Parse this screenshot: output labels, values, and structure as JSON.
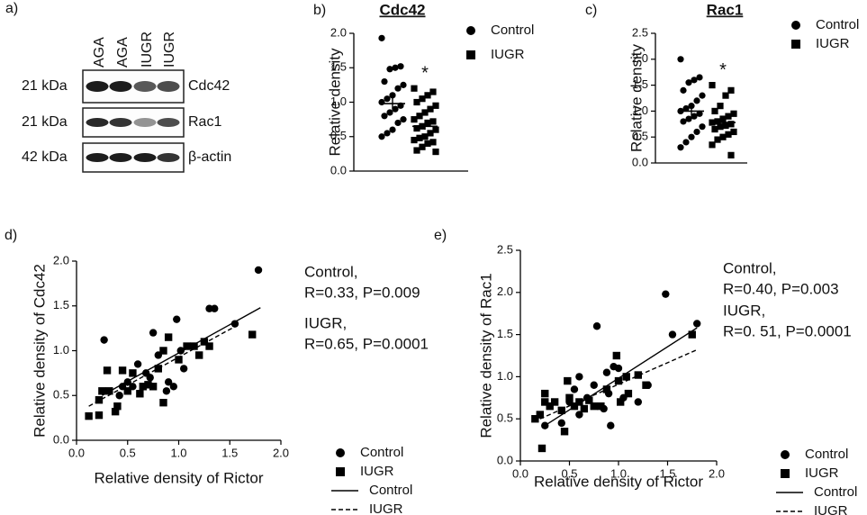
{
  "blot": {
    "panel_label": "a)",
    "lanes": [
      "AGA",
      "AGA",
      "IUGR",
      "IUGR"
    ],
    "rows": [
      {
        "weight": "21 kDa",
        "protein": "Cdc42"
      },
      {
        "weight": "21 kDa",
        "protein": "Rac1"
      },
      {
        "weight": "42 kDa",
        "protein": "β-actin"
      }
    ]
  },
  "chart_data": [
    {
      "type": "strip",
      "panel_label": "b)",
      "title": "Cdc42",
      "ylabel": "Relative density",
      "annotation": "*",
      "ylim": [
        0,
        2
      ],
      "yticks": [
        {
          "value": 0,
          "label": "0.0"
        },
        0.5,
        {
          "value": 1,
          "label": "1.0"
        },
        1.5,
        {
          "value": 2,
          "label": "2.0"
        }
      ],
      "series": [
        {
          "name": "Control",
          "marker": "circle",
          "color": "#000000",
          "mean": 0.98,
          "error": 0.08,
          "values": [
            1.93,
            1.52,
            1.5,
            1.48,
            1.3,
            1.25,
            1.2,
            1.1,
            1.05,
            1.0,
            0.95,
            0.9,
            0.85,
            0.8,
            0.75,
            0.7,
            0.6,
            0.55,
            0.5
          ]
        },
        {
          "name": "IUGR",
          "marker": "square",
          "color": "#000000",
          "mean": 0.65,
          "error": 0.05,
          "values": [
            1.2,
            1.15,
            1.1,
            1.05,
            1.0,
            0.95,
            0.9,
            0.85,
            0.8,
            0.75,
            0.72,
            0.7,
            0.65,
            0.62,
            0.6,
            0.55,
            0.5,
            0.48,
            0.45,
            0.42,
            0.4,
            0.35,
            0.3,
            0.28
          ]
        }
      ]
    },
    {
      "type": "strip",
      "panel_label": "c)",
      "title": "Rac1",
      "ylabel": "Relative density",
      "annotation": "*",
      "ylim": [
        0,
        2.5
      ],
      "yticks": [
        {
          "value": 0,
          "label": "0.0"
        },
        0.5,
        {
          "value": 1,
          "label": "1.0"
        },
        1.5,
        {
          "value": 2,
          "label": "2.0"
        },
        2.5
      ],
      "series": [
        {
          "name": "Control",
          "marker": "circle",
          "color": "#000000",
          "mean": 1.0,
          "error": 0.09,
          "values": [
            2.0,
            1.65,
            1.6,
            1.55,
            1.4,
            1.3,
            1.2,
            1.1,
            1.05,
            1.0,
            0.95,
            0.9,
            0.85,
            0.8,
            0.7,
            0.6,
            0.5,
            0.4,
            0.3
          ]
        },
        {
          "name": "IUGR",
          "marker": "square",
          "color": "#000000",
          "mean": 0.78,
          "error": 0.06,
          "values": [
            1.5,
            1.4,
            1.3,
            1.1,
            1.0,
            0.95,
            0.9,
            0.85,
            0.8,
            0.78,
            0.75,
            0.72,
            0.7,
            0.65,
            0.6,
            0.55,
            0.5,
            0.45,
            0.35,
            0.15
          ]
        }
      ]
    },
    {
      "type": "scatter",
      "panel_label": "d)",
      "xlabel": "Relative density of Rictor",
      "ylabel": "Relative density of Cdc42",
      "xlim": [
        0,
        2
      ],
      "xticks": [
        {
          "value": 0,
          "label": "0.0"
        },
        0.5,
        {
          "value": 1,
          "label": "1.0"
        },
        1.5,
        {
          "value": 2,
          "label": "2.0"
        }
      ],
      "ylim": [
        0,
        2
      ],
      "yticks": [
        {
          "value": 0,
          "label": "0.0"
        },
        0.5,
        {
          "value": 1,
          "label": "1.0"
        },
        1.5,
        {
          "value": 2,
          "label": "2.0"
        }
      ],
      "annotations": [
        "Control,",
        "R=0.33, P=0.009",
        "IUGR,",
        "R=0.65, P=0.0001"
      ],
      "series": [
        {
          "name": "Control",
          "marker": "circle",
          "color": "#000000",
          "x": [
            1.78,
            0.27,
            0.98,
            1.3,
            1.35,
            1.55,
            0.75,
            1.02,
            0.8,
            0.6,
            0.68,
            0.5,
            0.45,
            0.42,
            0.55,
            0.9,
            0.95,
            0.88,
            1.05,
            0.72
          ],
          "y": [
            1.9,
            1.12,
            1.35,
            1.47,
            1.47,
            1.3,
            1.2,
            1.0,
            0.95,
            0.85,
            0.75,
            0.65,
            0.6,
            0.5,
            0.6,
            0.65,
            0.6,
            0.55,
            0.8,
            0.7
          ]
        },
        {
          "name": "IUGR",
          "marker": "square",
          "color": "#000000",
          "x": [
            0.12,
            0.22,
            0.22,
            0.25,
            0.3,
            0.32,
            0.38,
            0.4,
            0.45,
            0.5,
            0.55,
            0.62,
            0.65,
            0.75,
            0.85,
            0.8,
            0.85,
            0.9,
            1.0,
            1.08,
            1.15,
            1.2,
            1.25,
            1.3,
            1.72,
            0.7
          ],
          "y": [
            0.27,
            0.28,
            0.45,
            0.55,
            0.78,
            0.55,
            0.32,
            0.38,
            0.78,
            0.55,
            0.75,
            0.52,
            0.6,
            0.6,
            0.42,
            0.8,
            1.0,
            1.15,
            0.9,
            1.05,
            1.05,
            0.95,
            1.1,
            1.05,
            1.18,
            0.62
          ]
        }
      ],
      "fits": [
        {
          "name": "Control",
          "style": "solid",
          "x": [
            0.25,
            1.8
          ],
          "y": [
            0.5,
            1.48
          ]
        },
        {
          "name": "IUGR",
          "style": "dashed",
          "x": [
            0.12,
            1.6
          ],
          "y": [
            0.38,
            1.3
          ]
        }
      ]
    },
    {
      "type": "scatter",
      "panel_label": "e)",
      "xlabel": "Relative density of Rictor",
      "ylabel": "Relative density of Rac1",
      "xlim": [
        0,
        2
      ],
      "xticks": [
        {
          "value": 0,
          "label": "0.0"
        },
        0.5,
        {
          "value": 1,
          "label": "1.0"
        },
        1.5,
        {
          "value": 2,
          "label": "2.0"
        }
      ],
      "ylim": [
        0,
        2.5
      ],
      "yticks": [
        {
          "value": 0,
          "label": "0.0"
        },
        0.5,
        {
          "value": 1,
          "label": "1.0"
        },
        1.5,
        {
          "value": 2,
          "label": "2.0"
        },
        2.5
      ],
      "annotations": [
        "Control,",
        "R=0.40, P=0.003",
        "IUGR,",
        "R=0. 51, P=0.0001"
      ],
      "series": [
        {
          "name": "Control",
          "marker": "circle",
          "color": "#000000",
          "x": [
            1.48,
            0.78,
            1.8,
            1.55,
            0.95,
            1.0,
            0.88,
            0.6,
            1.3,
            0.75,
            0.55,
            0.9,
            0.68,
            0.5,
            1.05,
            1.2,
            0.85,
            0.6,
            0.92,
            0.25,
            0.42
          ],
          "y": [
            1.98,
            1.6,
            1.63,
            1.5,
            1.12,
            1.1,
            1.05,
            1.0,
            0.9,
            0.9,
            0.85,
            0.8,
            0.75,
            0.7,
            0.75,
            0.7,
            0.62,
            0.55,
            0.42,
            0.42,
            0.45
          ]
        },
        {
          "name": "IUGR",
          "marker": "square",
          "color": "#000000",
          "x": [
            0.22,
            0.2,
            0.15,
            0.25,
            0.25,
            0.3,
            0.35,
            0.42,
            0.45,
            0.48,
            0.5,
            0.55,
            0.6,
            0.65,
            0.7,
            0.75,
            0.82,
            0.88,
            0.98,
            1.0,
            1.02,
            1.08,
            1.1,
            1.2,
            1.28,
            1.75
          ],
          "y": [
            0.15,
            0.55,
            0.5,
            0.7,
            0.8,
            0.65,
            0.7,
            0.6,
            0.35,
            0.95,
            0.75,
            0.65,
            0.7,
            0.62,
            0.72,
            0.65,
            0.65,
            0.85,
            1.25,
            0.95,
            0.7,
            1.0,
            0.8,
            1.02,
            0.9,
            1.5
          ]
        }
      ],
      "fits": [
        {
          "name": "Control",
          "style": "solid",
          "x": [
            0.25,
            1.8
          ],
          "y": [
            0.42,
            1.58
          ]
        },
        {
          "name": "IUGR",
          "style": "dashed",
          "x": [
            0.2,
            1.8
          ],
          "y": [
            0.5,
            1.32
          ]
        }
      ]
    }
  ]
}
